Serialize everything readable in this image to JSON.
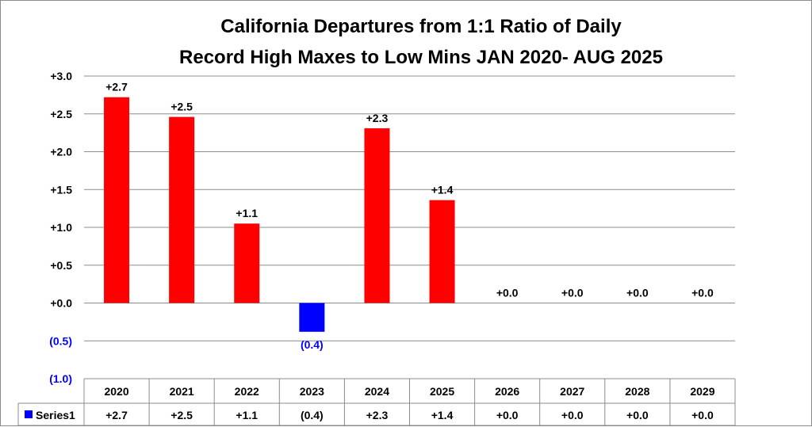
{
  "chart_data": {
    "type": "bar",
    "title_lines": [
      "California Departures from 1:1 Ratio of Daily",
      "Record High Maxes to Low Mins JAN 2020- AUG 2025"
    ],
    "categories": [
      "2020",
      "2021",
      "2022",
      "2023",
      "2024",
      "2025",
      "2026",
      "2027",
      "2028",
      "2029"
    ],
    "series": [
      {
        "name": "Series1",
        "values": [
          2.72,
          2.46,
          1.05,
          -0.38,
          2.31,
          1.36,
          0.0,
          0.0,
          0.0,
          0.0
        ],
        "labels": [
          "+2.7",
          "+2.5",
          "+1.1",
          "(0.4)",
          "+2.3",
          "+1.4",
          "+0.0",
          "+0.0",
          "+0.0",
          "+0.0"
        ]
      }
    ],
    "ylim": [
      -1.0,
      3.0
    ],
    "yticks": [
      {
        "value": 3.0,
        "label": "+3.0"
      },
      {
        "value": 2.5,
        "label": "+2.5"
      },
      {
        "value": 2.0,
        "label": "+2.0"
      },
      {
        "value": 1.5,
        "label": "+1.5"
      },
      {
        "value": 1.0,
        "label": "+1.0"
      },
      {
        "value": 0.5,
        "label": "+0.5"
      },
      {
        "value": 0.0,
        "label": "+0.0"
      },
      {
        "value": -0.5,
        "label": "(0.5)"
      },
      {
        "value": -1.0,
        "label": "(1.0)"
      }
    ],
    "grid": true,
    "data_table": true,
    "colors": {
      "positive": "#ff0000",
      "negative": "#0000ff",
      "negative_text": "#0000ff",
      "grid": "#8c8c8c",
      "text": "#000000"
    }
  }
}
